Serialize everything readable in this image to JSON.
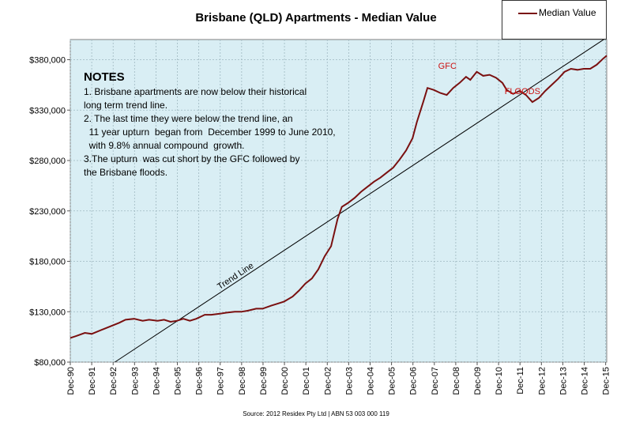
{
  "chart_data": {
    "type": "line",
    "title": "Brisbane (QLD) Apartments - Median Value",
    "xlabel": "",
    "ylabel": "",
    "ylim": [
      80000,
      400000
    ],
    "xlim": [
      1990.92,
      2015.97
    ],
    "grid": true,
    "legend_position": "top-right",
    "y_ticks": [
      "$80,000",
      "$130,000",
      "$180,000",
      "$230,000",
      "$280,000",
      "$330,000",
      "$380,000"
    ],
    "y_tick_values": [
      80000,
      130000,
      180000,
      230000,
      280000,
      330000,
      380000
    ],
    "x_ticks": [
      "Dec-90",
      "Dec-91",
      "Dec-92",
      "Dec-93",
      "Dec-94",
      "Dec-95",
      "Dec-96",
      "Dec-97",
      "Dec-98",
      "Dec-99",
      "Dec-00",
      "Dec-01",
      "Dec-02",
      "Dec-03",
      "Dec-04",
      "Dec-05",
      "Dec-06",
      "Dec-07",
      "Dec-08",
      "Dec-09",
      "Dec-10",
      "Dec-11",
      "Dec-12",
      "Dec-13",
      "Dec-14",
      "Dec-15"
    ],
    "x_tick_values": [
      1990.92,
      1991.92,
      1992.92,
      1993.92,
      1994.92,
      1995.92,
      1996.92,
      1997.92,
      1998.92,
      1999.92,
      2000.92,
      2001.92,
      2002.92,
      2003.92,
      2004.92,
      2005.92,
      2006.92,
      2007.92,
      2008.92,
      2009.92,
      2010.92,
      2011.92,
      2012.92,
      2013.92,
      2014.92,
      2015.92
    ],
    "series": [
      {
        "name": "Median Value",
        "color": "#7a1010",
        "x": [
          1990.92,
          1991.2,
          1991.6,
          1991.92,
          1992.5,
          1993.2,
          1993.5,
          1993.9,
          1994.3,
          1994.6,
          1995.0,
          1995.3,
          1995.6,
          1995.9,
          1996.2,
          1996.5,
          1996.8,
          1997.2,
          1997.5,
          1997.9,
          1998.2,
          1998.6,
          1998.9,
          1999.2,
          1999.6,
          1999.9,
          2000.3,
          2000.6,
          2000.9,
          2001.3,
          2001.6,
          2001.9,
          2002.2,
          2002.5,
          2002.8,
          2003.1,
          2003.4,
          2003.6,
          2003.9,
          2004.2,
          2004.5,
          2004.8,
          2005.1,
          2005.4,
          2005.7,
          2006.0,
          2006.3,
          2006.6,
          2006.9,
          2007.1,
          2007.4,
          2007.6,
          2007.9,
          2008.2,
          2008.5,
          2008.8,
          2009.1,
          2009.4,
          2009.6,
          2009.9,
          2010.2,
          2010.5,
          2010.8,
          2011.1,
          2011.3,
          2011.6,
          2011.9,
          2012.2,
          2012.5,
          2012.8,
          2013.1,
          2013.4,
          2013.7,
          2014.0,
          2014.3,
          2014.6,
          2014.9,
          2015.2,
          2015.5,
          2015.8,
          2015.97
        ],
        "y": [
          104000,
          106000,
          109000,
          108000,
          113000,
          119000,
          122000,
          123000,
          121000,
          122000,
          121000,
          122000,
          120000,
          121000,
          123000,
          121000,
          123000,
          127000,
          127000,
          128000,
          129000,
          130000,
          130000,
          131000,
          133000,
          133000,
          136000,
          138000,
          140000,
          145000,
          151000,
          158000,
          163000,
          172000,
          185000,
          195000,
          222000,
          234000,
          238000,
          243000,
          249000,
          254000,
          259000,
          263000,
          268000,
          273000,
          281000,
          290000,
          302000,
          318000,
          338000,
          352000,
          350000,
          347000,
          345000,
          352000,
          357000,
          363000,
          360000,
          368000,
          364000,
          365000,
          362000,
          357000,
          350000,
          346000,
          349000,
          345000,
          338000,
          342000,
          349000,
          355000,
          361000,
          368000,
          371000,
          370000,
          371000,
          371000,
          375000,
          381000,
          384000
        ]
      }
    ],
    "trend_line": {
      "label": "Trend Line",
      "x": [
        1993.0,
        2015.97
      ],
      "y": [
        80000,
        402000
      ]
    },
    "annotations": [
      {
        "text": "GFC",
        "x": 2008.1,
        "y": 371000
      },
      {
        "text": "FLOODS",
        "x": 2011.2,
        "y": 346000
      }
    ]
  },
  "legend": {
    "entry": "Median Value"
  },
  "notes": {
    "title": "NOTES",
    "lines": [
      "1. Brisbane apartments are now below their historical",
      "long term trend line.",
      "2. The last time they were below the trend line, an",
      "  11 year upturn  began from  December 1999 to June 2010,",
      "  with 9.8% annual compound  growth.",
      "3.The upturn  was cut short by the GFC followed by",
      "the Brisbane floods."
    ]
  },
  "source": "Source:  2012 Residex Pty Ltd | ABN 53 003 000 119"
}
